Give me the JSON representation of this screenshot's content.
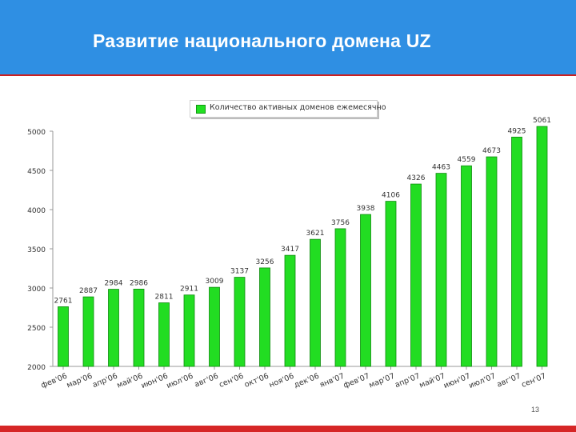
{
  "header": {
    "title": "Развитие национального домена UZ"
  },
  "colors": {
    "header_bg": "#2f8fe3",
    "bar_fill": "#22dd22",
    "bar_stroke": "#0e8a0e",
    "accent_line": "#cc1f1f"
  },
  "page_number": "13",
  "chart_data": {
    "type": "bar",
    "title": "",
    "xlabel": "",
    "ylabel": "",
    "ylim": [
      2000,
      5000
    ],
    "yticks": [
      "5000",
      "4500",
      "4000",
      "3500",
      "3000",
      "2500",
      "2000"
    ],
    "grid": false,
    "legend_position": "top-center",
    "categories": [
      "фев'06",
      "мар'06",
      "апр'06",
      "май'06",
      "июн'06",
      "июл'06",
      "авг'06",
      "сен'06",
      "окт'06",
      "ноя'06",
      "дек'06",
      "янв'07",
      "фев'07",
      "мар'07",
      "апр'07",
      "май'07",
      "июн'07",
      "июл'07",
      "авг'07",
      "сен'07"
    ],
    "series": [
      {
        "name": "Количество активных доменов ежемесячно",
        "values": [
          2761,
          2887,
          2984,
          2986,
          2811,
          2911,
          3009,
          3137,
          3256,
          3417,
          3621,
          3756,
          3938,
          4106,
          4326,
          4463,
          4559,
          4673,
          4925,
          5061
        ]
      }
    ]
  }
}
